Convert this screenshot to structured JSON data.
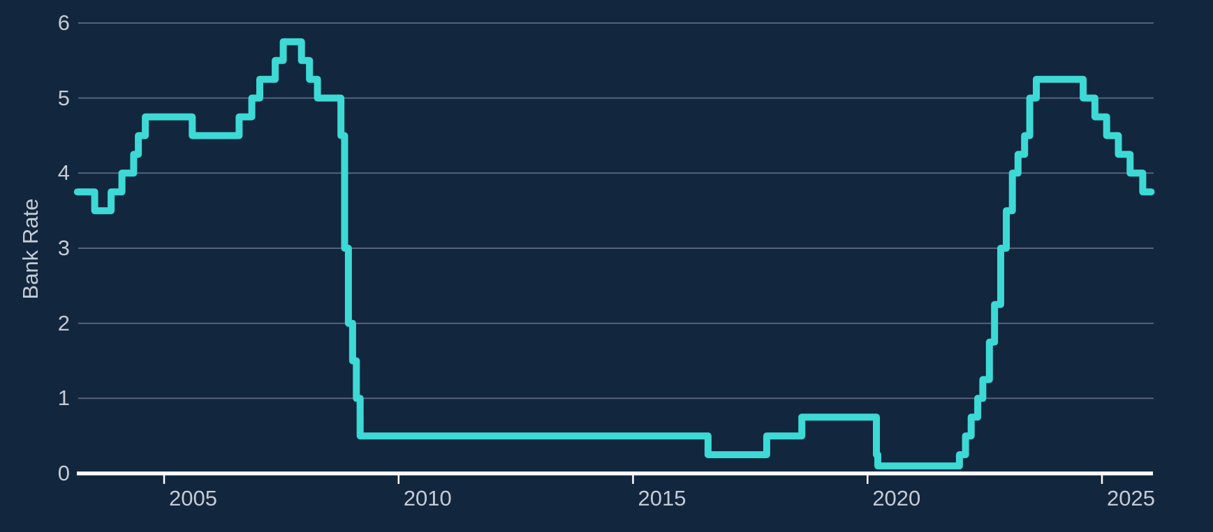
{
  "chart_data": {
    "type": "line",
    "step_mode": "step-after",
    "title": "",
    "xlabel": "",
    "ylabel": "Bank Rate",
    "legend_position": "none",
    "grid": "horizontal",
    "xlim": [
      2003.15,
      2026.05
    ],
    "ylim": [
      0,
      6
    ],
    "x_ticks": [
      2005,
      2010,
      2015,
      2020,
      2025
    ],
    "x_tick_labels": [
      "2005",
      "2010",
      "2015",
      "2020",
      "2025"
    ],
    "y_ticks": [
      0,
      1,
      2,
      3,
      4,
      5,
      6
    ],
    "y_tick_labels": [
      "0",
      "1",
      "2",
      "3",
      "4",
      "5",
      "6"
    ],
    "series": [
      {
        "name": "Bank Rate",
        "points": [
          [
            2003.15,
            3.75
          ],
          [
            2003.52,
            3.5
          ],
          [
            2003.87,
            3.75
          ],
          [
            2004.1,
            4.0
          ],
          [
            2004.35,
            4.25
          ],
          [
            2004.45,
            4.5
          ],
          [
            2004.6,
            4.75
          ],
          [
            2005.6,
            4.5
          ],
          [
            2006.6,
            4.75
          ],
          [
            2006.87,
            5.0
          ],
          [
            2007.04,
            5.25
          ],
          [
            2007.37,
            5.5
          ],
          [
            2007.54,
            5.75
          ],
          [
            2007.93,
            5.5
          ],
          [
            2008.1,
            5.25
          ],
          [
            2008.27,
            5.0
          ],
          [
            2008.77,
            4.5
          ],
          [
            2008.85,
            3.0
          ],
          [
            2008.93,
            2.0
          ],
          [
            2009.02,
            1.5
          ],
          [
            2009.1,
            1.0
          ],
          [
            2009.18,
            0.5
          ],
          [
            2016.6,
            0.25
          ],
          [
            2017.85,
            0.5
          ],
          [
            2018.6,
            0.75
          ],
          [
            2020.19,
            0.25
          ],
          [
            2020.22,
            0.1
          ],
          [
            2021.96,
            0.25
          ],
          [
            2022.09,
            0.5
          ],
          [
            2022.21,
            0.75
          ],
          [
            2022.35,
            1.0
          ],
          [
            2022.46,
            1.25
          ],
          [
            2022.6,
            1.75
          ],
          [
            2022.71,
            2.25
          ],
          [
            2022.84,
            3.0
          ],
          [
            2022.96,
            3.5
          ],
          [
            2023.09,
            4.0
          ],
          [
            2023.21,
            4.25
          ],
          [
            2023.35,
            4.5
          ],
          [
            2023.46,
            5.0
          ],
          [
            2023.6,
            5.25
          ],
          [
            2024.6,
            5.0
          ],
          [
            2024.85,
            4.75
          ],
          [
            2025.1,
            4.5
          ],
          [
            2025.35,
            4.25
          ],
          [
            2025.6,
            4.0
          ],
          [
            2025.87,
            3.75
          ],
          [
            2026.05,
            3.75
          ]
        ]
      }
    ],
    "colors": {
      "line": "#3DD9D5",
      "background": "#12263E",
      "gridline": "#55637B",
      "axis_line": "#FFFFFF",
      "tick_label": "#C5CBD5"
    }
  }
}
